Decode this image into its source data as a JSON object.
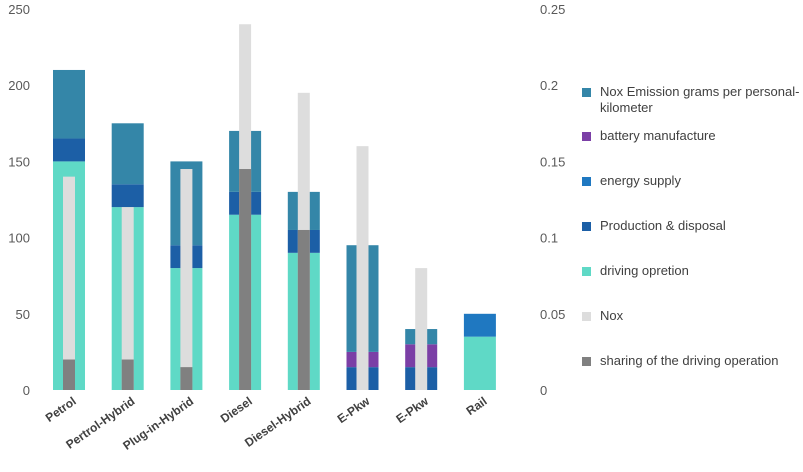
{
  "chart_data": {
    "type": "bar",
    "categories": [
      "Petrol",
      "Pertrol-Hybrid",
      "Plug-in-Hybrid",
      "Diesel",
      "Diesel-Hybrid",
      "E-Pkw",
      "E-Pkw",
      "Rail"
    ],
    "left_axis": {
      "ylim": [
        0,
        250
      ],
      "ticks": [
        "0",
        "50",
        "100",
        "150",
        "200",
        "250"
      ]
    },
    "right_axis": {
      "ylim": [
        0,
        0.25
      ],
      "ticks": [
        "0",
        "0.05",
        "0.1",
        "0.15",
        "0.2",
        "0.25"
      ]
    },
    "stacked_series": [
      {
        "name": "driving opretion",
        "color": "#5fd9c6",
        "values": [
          150,
          120,
          80,
          115,
          90,
          0,
          0,
          35
        ]
      },
      {
        "name": "Production & disposal",
        "color": "#1c5fa6",
        "values": [
          15,
          15,
          15,
          15,
          15,
          15,
          15,
          0
        ]
      },
      {
        "name": "energy supply",
        "color": "#1f78c1",
        "values": [
          0,
          0,
          0,
          0,
          0,
          0,
          0,
          15
        ]
      },
      {
        "name": "battery manufacture",
        "color": "#7b3fa6",
        "values": [
          0,
          0,
          0,
          0,
          0,
          10,
          15,
          0
        ]
      },
      {
        "name": "Nox Emission grams per personal-kilometer",
        "color": "#3486a8",
        "values": [
          45,
          40,
          55,
          40,
          25,
          70,
          10,
          0
        ]
      }
    ],
    "overlay_series": [
      {
        "name": "Nox",
        "axis": "right",
        "color": "#dddddd",
        "values": [
          0.14,
          0.12,
          0.145,
          0.24,
          0.195,
          0.16,
          0.08,
          0
        ]
      },
      {
        "name": "sharing of the driving operation",
        "axis": "right",
        "color": "#808080",
        "values": [
          0.02,
          0.02,
          0.015,
          0.145,
          0.105,
          0,
          0,
          0
        ]
      }
    ],
    "legend": [
      {
        "label": "Nox Emission grams per personal-kilometer",
        "color": "#3486a8"
      },
      {
        "label": "battery manufacture",
        "color": "#7b3fa6"
      },
      {
        "label": "energy supply",
        "color": "#1f78c1"
      },
      {
        "label": "Production & disposal",
        "color": "#1c5fa6"
      },
      {
        "label": "driving opretion",
        "color": "#5fd9c6"
      },
      {
        "label": "Nox",
        "color": "#dddddd"
      },
      {
        "label": "sharing of the driving operation",
        "color": "#808080"
      }
    ],
    "legend_position": "right",
    "grid": false
  }
}
